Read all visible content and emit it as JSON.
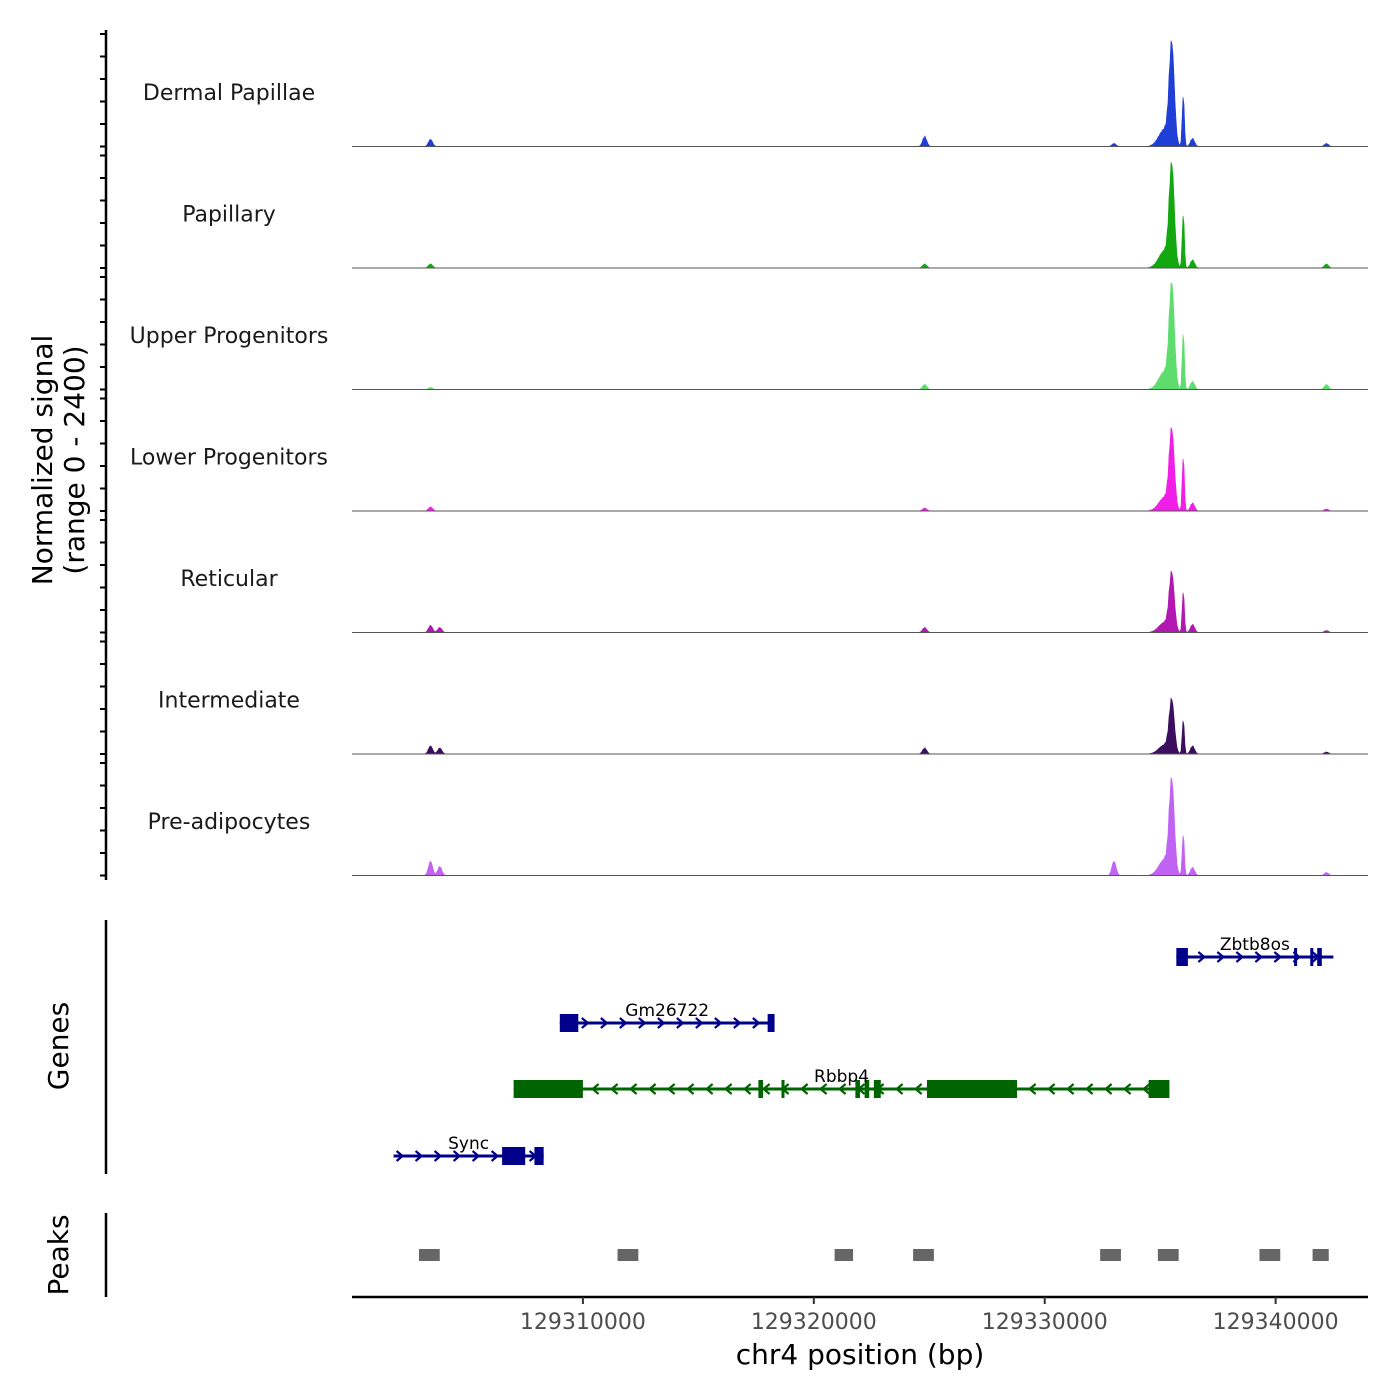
{
  "chart_data": {
    "type": "area",
    "chromosome": "chr4",
    "xlabel": "chr4 position (bp)",
    "ylabel_line1": "Normalized signal",
    "ylabel_line2": "(range 0 - 2400)",
    "signal_range": [
      0,
      2400
    ],
    "xlim": [
      129300000,
      129344000
    ],
    "x_ticks": [
      129310000,
      129320000,
      129330000,
      129340000
    ],
    "x_tick_labels": [
      "129310000",
      "129320000",
      "129330000",
      "129340000"
    ],
    "tracks": [
      {
        "name": "Dermal Papillae",
        "color": "#1f3fd6",
        "peak_height": 0.95,
        "second_peak": 0.52,
        "minor_peaks": [
          {
            "x": 129303400,
            "h": 0.07
          },
          {
            "x": 129324800,
            "h": 0.1
          },
          {
            "x": 129333000,
            "h": 0.03
          },
          {
            "x": 129342200,
            "h": 0.03
          }
        ]
      },
      {
        "name": "Papillary",
        "color": "#13a80f",
        "peak_height": 0.95,
        "second_peak": 0.55,
        "minor_peaks": [
          {
            "x": 129303400,
            "h": 0.04
          },
          {
            "x": 129324800,
            "h": 0.04
          },
          {
            "x": 129342200,
            "h": 0.04
          }
        ]
      },
      {
        "name": "Upper Progenitors",
        "color": "#5edc6e",
        "peak_height": 0.98,
        "second_peak": 0.58,
        "minor_peaks": [
          {
            "x": 129303400,
            "h": 0.02
          },
          {
            "x": 129324800,
            "h": 0.05
          },
          {
            "x": 129342200,
            "h": 0.05
          }
        ]
      },
      {
        "name": "Lower Progenitors",
        "color": "#f01ee6",
        "peak_height": 0.75,
        "second_peak": 0.55,
        "minor_peaks": [
          {
            "x": 129303400,
            "h": 0.04
          },
          {
            "x": 129324800,
            "h": 0.03
          },
          {
            "x": 129342200,
            "h": 0.02
          }
        ]
      },
      {
        "name": "Reticular",
        "color": "#b118b1",
        "peak_height": 0.55,
        "second_peak": 0.42,
        "minor_peaks": [
          {
            "x": 129303400,
            "h": 0.07
          },
          {
            "x": 129303800,
            "h": 0.05
          },
          {
            "x": 129324800,
            "h": 0.05
          },
          {
            "x": 129342200,
            "h": 0.02
          }
        ]
      },
      {
        "name": "Intermediate",
        "color": "#3b0f5e",
        "peak_height": 0.5,
        "second_peak": 0.35,
        "minor_peaks": [
          {
            "x": 129303400,
            "h": 0.08
          },
          {
            "x": 129303800,
            "h": 0.06
          },
          {
            "x": 129324800,
            "h": 0.06
          },
          {
            "x": 129342200,
            "h": 0.02
          }
        ]
      },
      {
        "name": "Pre-adipocytes",
        "color": "#c062f2",
        "peak_height": 0.88,
        "second_peak": 0.42,
        "minor_peaks": [
          {
            "x": 129303400,
            "h": 0.14
          },
          {
            "x": 129303800,
            "h": 0.09
          },
          {
            "x": 129333000,
            "h": 0.14
          },
          {
            "x": 129342200,
            "h": 0.03
          }
        ]
      }
    ],
    "genes_label": "Genes",
    "genes": [
      {
        "name": "Zbtb8os",
        "strand": "+",
        "start": 129335700,
        "end": 129342500,
        "row": 0,
        "color": "#00008b",
        "exons": [
          [
            129335700,
            129336200
          ],
          [
            129340800,
            129340900
          ],
          [
            129341500,
            129341600
          ],
          [
            129341800,
            129342000
          ]
        ]
      },
      {
        "name": "Gm26722",
        "strand": "+",
        "start": 129309000,
        "end": 129318300,
        "row": 1,
        "color": "#00008b",
        "exons": [
          [
            129309000,
            129309800
          ],
          [
            129318000,
            129318300
          ]
        ]
      },
      {
        "name": "Rbbp4",
        "strand": "-",
        "start": 129307000,
        "end": 129335400,
        "row": 2,
        "color": "#006400",
        "exons": [
          [
            129307000,
            129310000
          ],
          [
            129317600,
            129317800
          ],
          [
            129318600,
            129318700
          ],
          [
            129321800,
            129322000
          ],
          [
            129322200,
            129322400
          ],
          [
            129322600,
            129322900
          ],
          [
            129324900,
            129328800
          ],
          [
            129334500,
            129335400
          ]
        ]
      },
      {
        "name": "Sync",
        "strand": "+",
        "start": 129301800,
        "end": 129308300,
        "row": 3,
        "color": "#00008b",
        "exons": [
          [
            129306500,
            129307500
          ],
          [
            129307900,
            129308300
          ]
        ]
      }
    ],
    "peaks_label": "Peaks",
    "peaks": [
      [
        129302900,
        129303800
      ],
      [
        129311500,
        129312400
      ],
      [
        129320900,
        129321700
      ],
      [
        129324300,
        129325200
      ],
      [
        129332400,
        129333300
      ],
      [
        129334900,
        129335800
      ],
      [
        129339300,
        129340200
      ],
      [
        129341600,
        129342300
      ]
    ],
    "main_peak_center": 129335500,
    "second_peak_center": 129336000
  }
}
